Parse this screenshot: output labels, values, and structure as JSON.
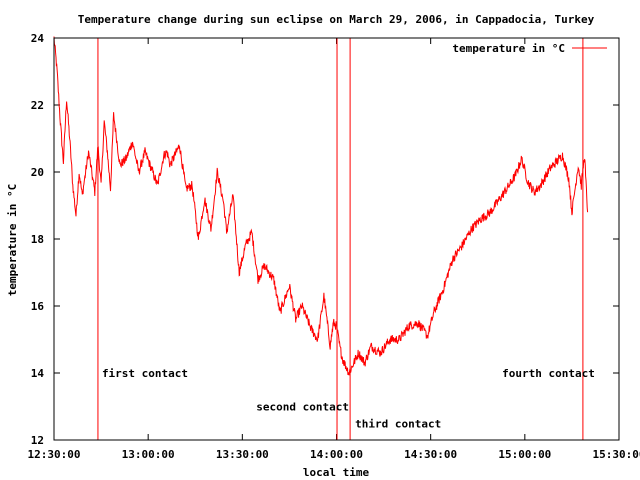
{
  "chart_data": {
    "type": "line",
    "title": "Temperature change during sun eclipse on March 29, 2006, in Cappadocia, Turkey",
    "xlabel": "local time",
    "ylabel": "temperature in °C",
    "xlim": [
      "12:30:00",
      "15:30:00"
    ],
    "ylim": [
      12,
      24
    ],
    "x_ticks": [
      "12:30:00",
      "13:00:00",
      "13:30:00",
      "14:00:00",
      "14:30:00",
      "15:00:00",
      "15:30:00"
    ],
    "y_ticks": [
      12,
      14,
      16,
      18,
      20,
      22,
      24
    ],
    "grid": false,
    "legend_position": "top-right",
    "series": [
      {
        "name": "temperature in °C",
        "color": "#ff0000",
        "x": [
          "12:30:00",
          "12:31:00",
          "12:32:00",
          "12:33:00",
          "12:34:00",
          "12:35:00",
          "12:36:00",
          "12:37:00",
          "12:38:00",
          "12:39:00",
          "12:41:00",
          "12:43:00",
          "12:44:00",
          "12:45:00",
          "12:46:00",
          "12:47:00",
          "12:48:00",
          "12:49:00",
          "12:51:00",
          "12:53:00",
          "12:55:00",
          "12:57:00",
          "12:59:00",
          "13:01:00",
          "13:03:00",
          "13:05:00",
          "13:06:00",
          "13:07:00",
          "13:09:00",
          "13:10:00",
          "13:12:00",
          "13:14:00",
          "13:16:00",
          "13:18:00",
          "13:20:00",
          "13:22:00",
          "13:24:00",
          "13:25:00",
          "13:27:00",
          "13:29:00",
          "13:31:00",
          "13:33:00",
          "13:35:00",
          "13:37:00",
          "13:40:00",
          "13:42:00",
          "13:45:00",
          "13:47:00",
          "13:49:00",
          "13:52:00",
          "13:54:00",
          "13:56:00",
          "13:58:00",
          "13:59:00",
          "14:00:00",
          "14:01:00",
          "14:02:00",
          "14:03:00",
          "14:04:00",
          "14:05:00",
          "14:07:00",
          "14:09:00",
          "14:11:00",
          "14:14:00",
          "14:17:00",
          "14:20:00",
          "14:23:00",
          "14:26:00",
          "14:29:00",
          "14:31:00",
          "14:34:00",
          "14:37:00",
          "14:40:00",
          "14:43:00",
          "14:46:00",
          "14:49:00",
          "14:52:00",
          "14:55:00",
          "14:57:00",
          "14:59:00",
          "15:01:00",
          "15:03:00",
          "15:05:00",
          "15:08:00",
          "15:10:00",
          "15:12:00",
          "15:14:00",
          "15:15:00",
          "15:17:00",
          "15:18:00",
          "15:19:00",
          "15:20:00"
        ],
        "y": [
          24.0,
          23.0,
          21.5,
          20.3,
          22.2,
          21.0,
          19.6,
          18.7,
          20.0,
          19.3,
          20.6,
          19.4,
          20.8,
          19.6,
          21.5,
          20.6,
          19.5,
          21.7,
          20.2,
          20.4,
          20.9,
          20.0,
          20.6,
          20.1,
          19.6,
          20.5,
          20.6,
          20.2,
          20.6,
          20.8,
          19.5,
          19.6,
          18.0,
          19.2,
          18.3,
          20.0,
          19.1,
          18.2,
          19.3,
          17.0,
          17.8,
          18.2,
          16.8,
          17.2,
          16.8,
          15.8,
          16.6,
          15.6,
          16.0,
          15.3,
          15.0,
          16.3,
          14.8,
          15.5,
          15.4,
          14.8,
          14.4,
          14.2,
          14.0,
          14.2,
          14.6,
          14.3,
          14.8,
          14.6,
          15.0,
          15.0,
          15.4,
          15.5,
          15.1,
          15.8,
          16.5,
          17.4,
          17.8,
          18.3,
          18.6,
          18.8,
          19.2,
          19.6,
          19.9,
          20.4,
          19.7,
          19.4,
          19.6,
          20.1,
          20.3,
          20.5,
          19.8,
          18.8,
          20.2,
          19.6,
          20.5,
          18.8
        ]
      }
    ],
    "annotations": [
      {
        "label": "first contact",
        "x": "12:44:00",
        "label_y": 14
      },
      {
        "label": "second contact",
        "x": "14:00:10",
        "label_y": 13
      },
      {
        "label": "third contact",
        "x": "14:04:20",
        "label_y": 12.5
      },
      {
        "label": "fourth contact",
        "x": "15:18:30",
        "label_y": 14
      }
    ]
  }
}
